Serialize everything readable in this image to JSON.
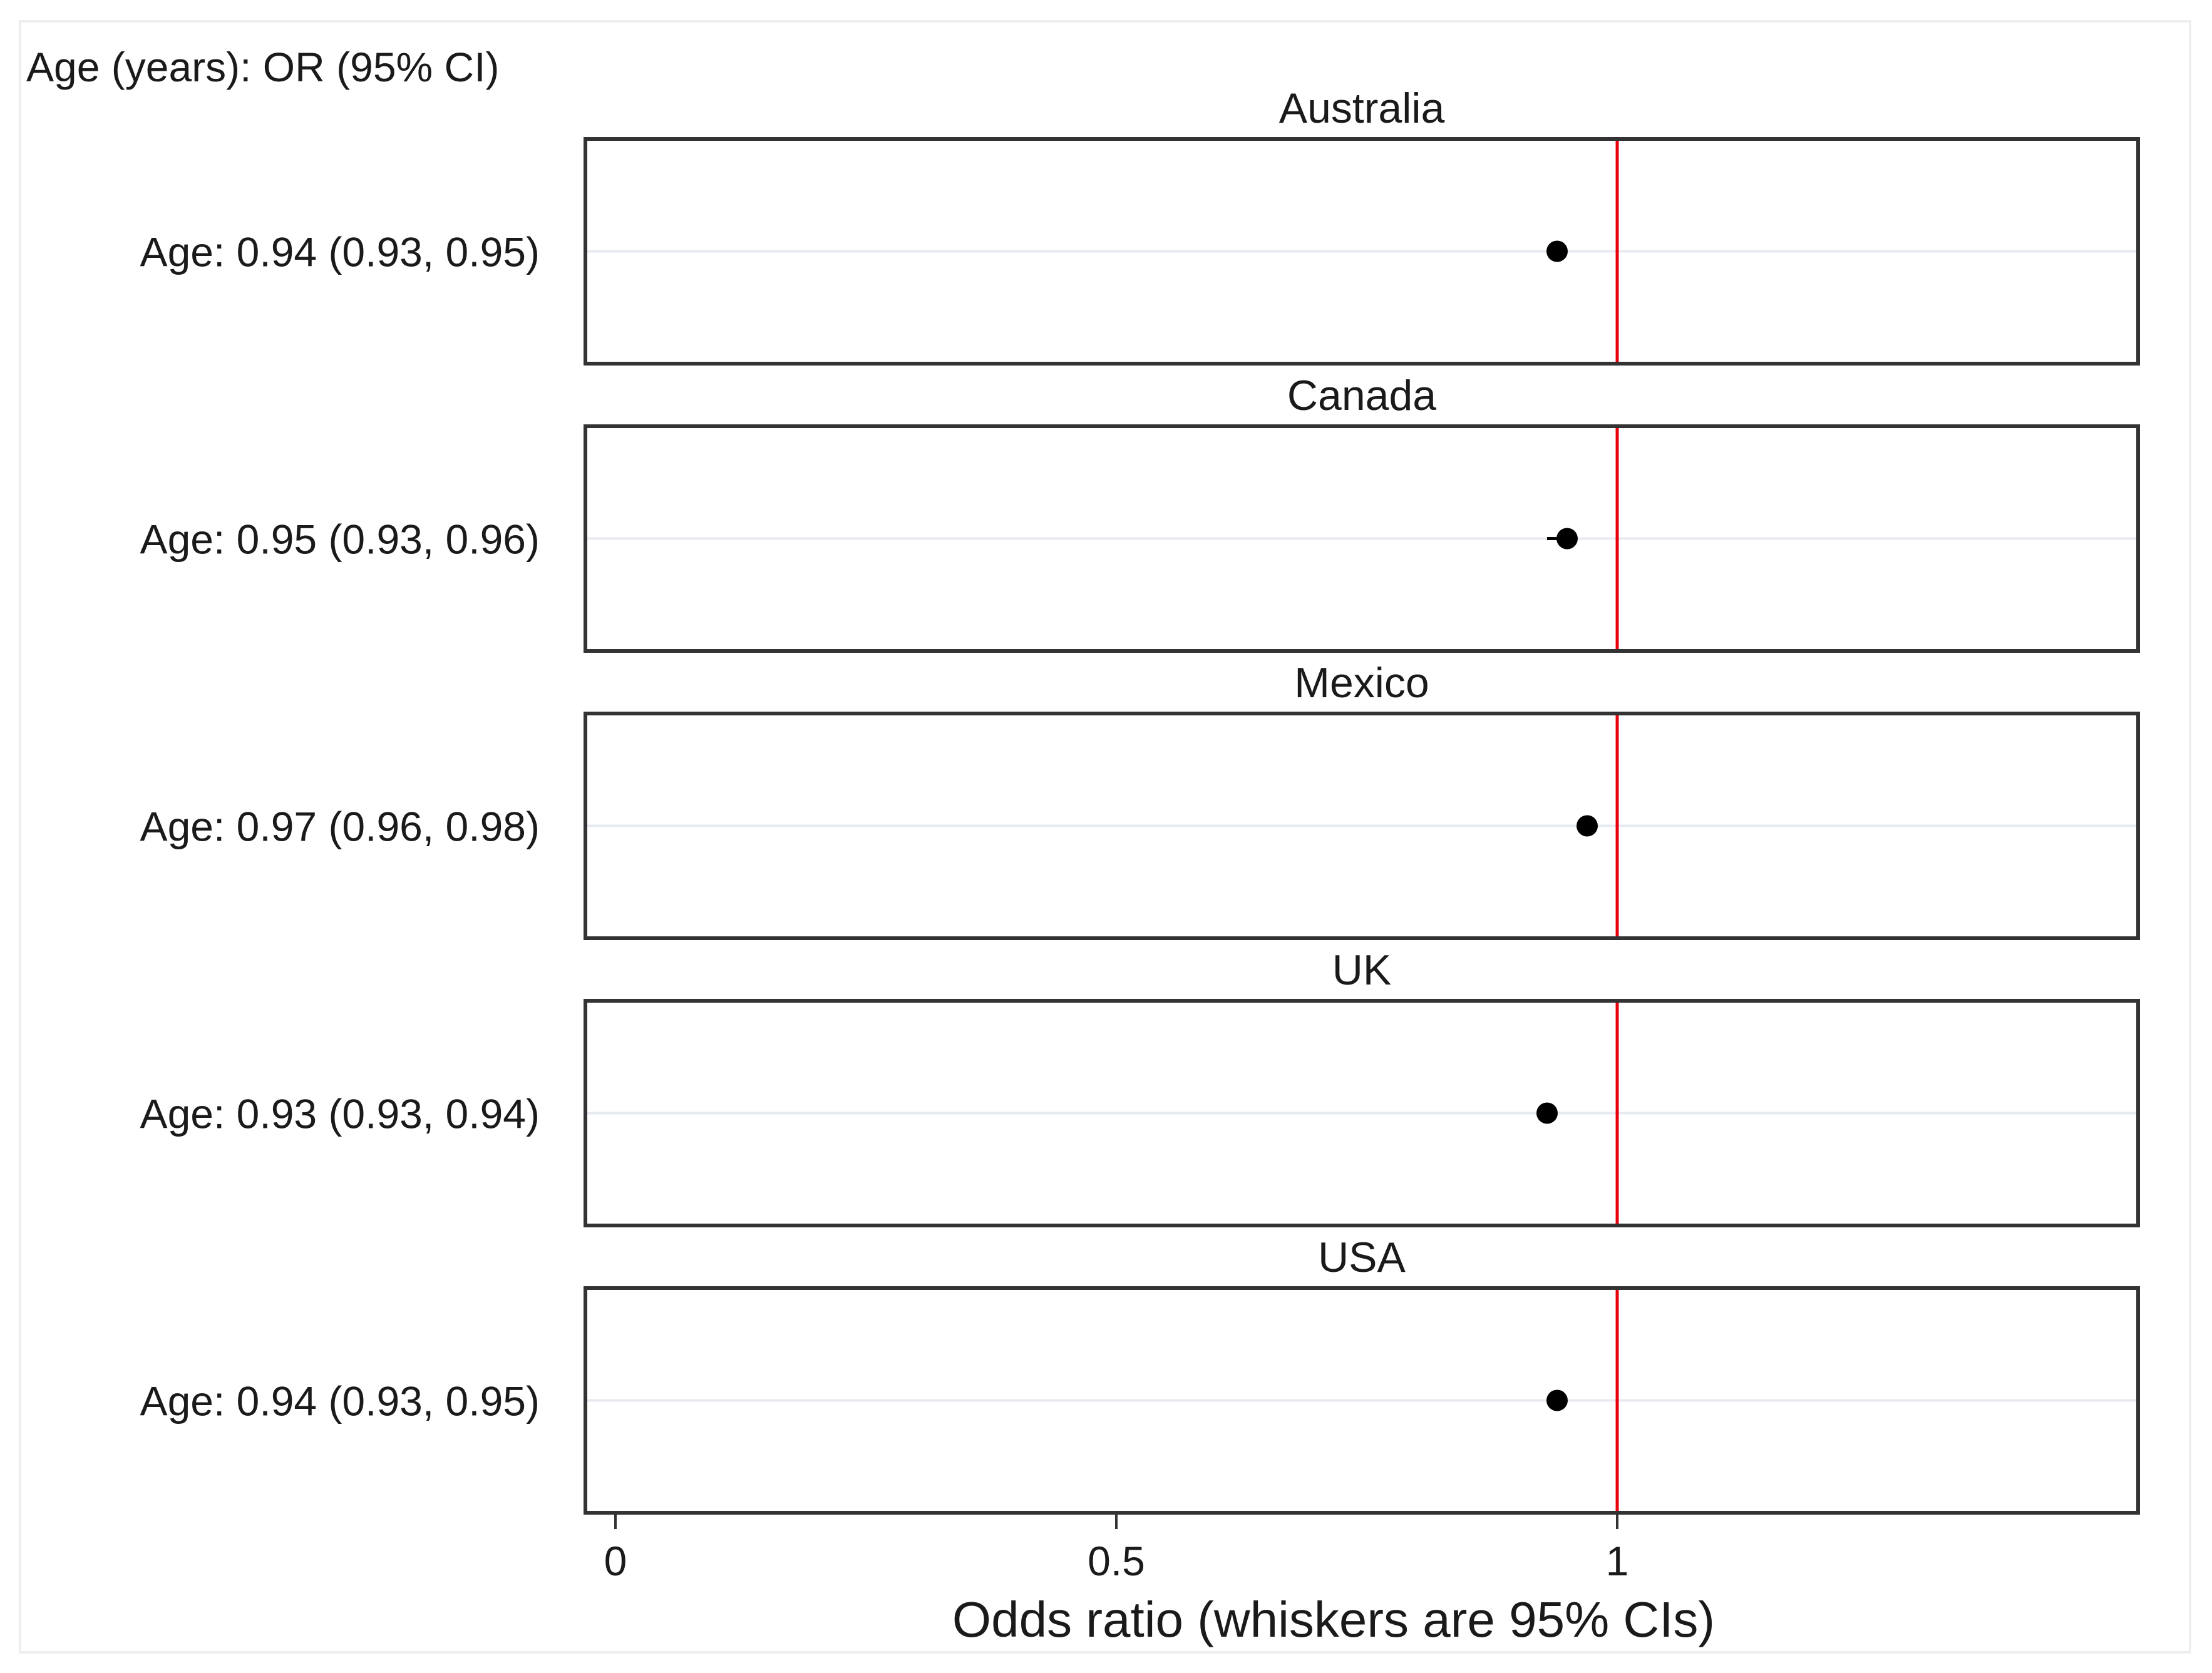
{
  "chart_data": {
    "type": "scatter",
    "header": "Age (years): OR (95% CI)",
    "xlabel": "Odds ratio (whiskers are 95% CIs)",
    "xlim": [
      -0.03,
      1.52
    ],
    "xticks": [
      0,
      0.5,
      1
    ],
    "tick_labels": [
      "0",
      "0.5",
      "1"
    ],
    "reference_line": {
      "x": 1,
      "color": "#e8000b"
    },
    "grid": true,
    "marker_color": "#000000",
    "panels": [
      {
        "title": "Australia",
        "row_label": "Age: 0.94 (0.93, 0.95)",
        "or": 0.94,
        "ci_low": 0.93,
        "ci_high": 0.95
      },
      {
        "title": "Canada",
        "row_label": "Age: 0.95 (0.93, 0.96)",
        "or": 0.95,
        "ci_low": 0.93,
        "ci_high": 0.96
      },
      {
        "title": "Mexico",
        "row_label": "Age: 0.97 (0.96, 0.98)",
        "or": 0.97,
        "ci_low": 0.96,
        "ci_high": 0.98
      },
      {
        "title": "UK",
        "row_label": "Age: 0.93 (0.93, 0.94)",
        "or": 0.93,
        "ci_low": 0.93,
        "ci_high": 0.94
      },
      {
        "title": "USA",
        "row_label": "Age: 0.94 (0.93, 0.95)",
        "or": 0.94,
        "ci_low": 0.93,
        "ci_high": 0.95
      }
    ]
  }
}
